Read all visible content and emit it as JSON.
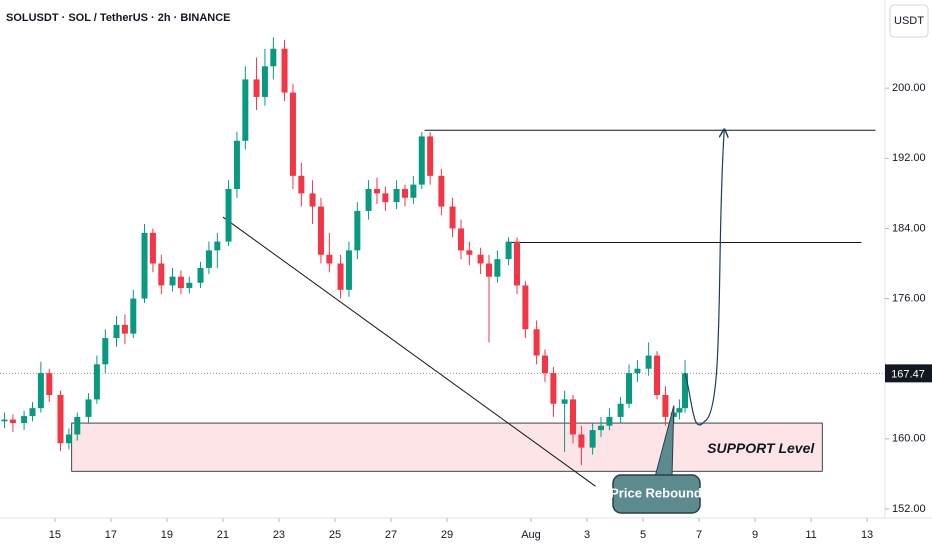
{
  "chart_data": {
    "type": "candlestick",
    "title": "SOLUSDT · SOL / TetherUS · 2h · BINANCE",
    "currency": "USDT",
    "up_color": "#089981",
    "down_color": "#f23645",
    "x": [
      13.2,
      13.5,
      13.9,
      14.2,
      14.5,
      14.8,
      15.2,
      15.5,
      15.8,
      16.2,
      16.5,
      16.8,
      17.2,
      17.5,
      17.8,
      18.2,
      18.5,
      18.8,
      19.2,
      19.5,
      19.8,
      20.2,
      20.5,
      20.8,
      21.2,
      21.5,
      21.8,
      22.2,
      22.5,
      22.8,
      23.2,
      23.5,
      23.8,
      24.2,
      24.5,
      24.8,
      25.2,
      25.5,
      25.8,
      26.2,
      26.5,
      26.8,
      27.2,
      27.5,
      27.8,
      28.1,
      28.4,
      28.8,
      29.2,
      29.5,
      29.8,
      30.2,
      30.5,
      30.8,
      31.2,
      31.5,
      31.8,
      32.2,
      32.5,
      32.8,
      33.2,
      33.5,
      33.8,
      34.2,
      34.5,
      34.8,
      35.2,
      35.5,
      35.8,
      36.2,
      36.5,
      36.8,
      37.1,
      37.3,
      37.5
    ],
    "ohlc": [
      [
        162.0,
        163.0,
        161.2,
        162.2
      ],
      [
        162.2,
        162.8,
        160.8,
        161.8
      ],
      [
        161.8,
        163.2,
        161.0,
        162.6
      ],
      [
        162.6,
        164.2,
        162.0,
        163.5
      ],
      [
        163.5,
        168.8,
        163.0,
        167.5
      ],
      [
        167.5,
        168.0,
        164.2,
        165.0
      ],
      [
        165.0,
        165.5,
        158.6,
        159.5
      ],
      [
        159.5,
        161.2,
        158.8,
        160.5
      ],
      [
        160.5,
        163.0,
        159.8,
        162.5
      ],
      [
        162.5,
        165.2,
        161.8,
        164.5
      ],
      [
        164.5,
        169.5,
        164.0,
        168.5
      ],
      [
        168.5,
        172.5,
        167.5,
        171.5
      ],
      [
        171.5,
        174.0,
        170.5,
        173.0
      ],
      [
        173.0,
        174.2,
        170.8,
        172.0
      ],
      [
        172.0,
        177.0,
        171.5,
        176.0
      ],
      [
        176.0,
        184.5,
        175.5,
        183.5
      ],
      [
        183.5,
        184.0,
        179.0,
        180.0
      ],
      [
        180.0,
        181.0,
        176.5,
        177.5
      ],
      [
        177.5,
        179.5,
        176.8,
        178.5
      ],
      [
        178.5,
        179.2,
        176.5,
        177.2
      ],
      [
        177.2,
        178.5,
        176.6,
        177.8
      ],
      [
        177.8,
        180.2,
        177.2,
        179.5
      ],
      [
        179.5,
        182.5,
        178.8,
        181.5
      ],
      [
        181.5,
        183.5,
        179.5,
        182.5
      ],
      [
        182.5,
        189.5,
        182.0,
        188.5
      ],
      [
        188.5,
        195.0,
        187.5,
        194.0
      ],
      [
        194.0,
        202.5,
        193.0,
        201.0
      ],
      [
        201.0,
        203.5,
        197.5,
        199.0
      ],
      [
        199.0,
        204.5,
        198.0,
        202.5
      ],
      [
        202.5,
        205.8,
        201.0,
        204.5
      ],
      [
        204.5,
        205.5,
        198.5,
        199.5
      ],
      [
        199.5,
        200.5,
        188.5,
        190.0
      ],
      [
        190.0,
        191.5,
        186.5,
        188.0
      ],
      [
        188.0,
        189.5,
        184.5,
        186.5
      ],
      [
        186.5,
        187.5,
        180.0,
        181.0
      ],
      [
        181.0,
        183.5,
        179.0,
        180.0
      ],
      [
        180.0,
        181.0,
        176.0,
        177.0
      ],
      [
        177.0,
        182.5,
        176.2,
        181.5
      ],
      [
        181.5,
        187.0,
        180.5,
        186.0
      ],
      [
        186.0,
        189.5,
        185.0,
        188.5
      ],
      [
        188.5,
        189.8,
        186.8,
        188.0
      ],
      [
        188.0,
        188.8,
        186.0,
        187.0
      ],
      [
        187.0,
        189.5,
        186.2,
        188.5
      ],
      [
        188.5,
        189.0,
        186.5,
        187.5
      ],
      [
        187.5,
        190.0,
        186.8,
        189.0
      ],
      [
        189.0,
        195.0,
        188.5,
        194.5
      ],
      [
        194.5,
        195.0,
        189.0,
        190.0
      ],
      [
        190.0,
        190.8,
        185.5,
        186.5
      ],
      [
        186.5,
        187.5,
        183.0,
        184.0
      ],
      [
        184.0,
        185.0,
        180.5,
        181.5
      ],
      [
        181.5,
        182.5,
        179.8,
        181.0
      ],
      [
        181.0,
        181.8,
        178.8,
        180.0
      ],
      [
        180.0,
        181.0,
        171.0,
        178.5
      ],
      [
        178.5,
        181.5,
        177.8,
        180.5
      ],
      [
        180.5,
        183.0,
        179.8,
        182.5
      ],
      [
        182.5,
        183.0,
        176.5,
        177.5
      ],
      [
        177.5,
        178.0,
        171.5,
        172.5
      ],
      [
        172.5,
        173.5,
        168.5,
        169.5
      ],
      [
        169.5,
        170.2,
        166.5,
        167.5
      ],
      [
        167.5,
        168.2,
        162.5,
        164.0
      ],
      [
        164.0,
        165.5,
        158.5,
        164.5
      ],
      [
        164.5,
        165.0,
        159.5,
        160.5
      ],
      [
        160.5,
        161.5,
        157.0,
        159.0
      ],
      [
        159.0,
        161.8,
        158.2,
        161.0
      ],
      [
        161.0,
        162.5,
        160.2,
        161.5
      ],
      [
        161.5,
        163.5,
        161.0,
        162.5
      ],
      [
        162.5,
        164.8,
        161.8,
        164.0
      ],
      [
        164.0,
        168.5,
        163.5,
        167.5
      ],
      [
        167.5,
        169.0,
        166.5,
        168.0
      ],
      [
        168.0,
        171.0,
        167.2,
        169.5
      ],
      [
        169.5,
        170.0,
        164.5,
        165.0
      ],
      [
        165.0,
        166.0,
        161.5,
        162.5
      ],
      [
        162.5,
        163.8,
        161.8,
        163.0
      ],
      [
        163.0,
        164.5,
        162.2,
        163.5
      ],
      [
        163.5,
        169.0,
        163.0,
        167.47
      ]
    ],
    "xlim": [
      13.04,
      44.64
    ],
    "ylim": [
      150.97,
      210.06
    ],
    "xticks": [
      15,
      17,
      19,
      21,
      23,
      25,
      27,
      29,
      {
        "value": 32,
        "label": "Aug"
      },
      {
        "value": 34,
        "label": "3"
      },
      {
        "value": 36,
        "label": "5"
      },
      {
        "value": 38,
        "label": "7"
      },
      {
        "value": 40,
        "label": "9"
      },
      {
        "value": 42,
        "label": "11"
      },
      {
        "value": 44,
        "label": "13"
      }
    ],
    "yticks": [
      {
        "value": 152,
        "label": "152.00"
      },
      {
        "value": 160,
        "label": "160.00"
      },
      {
        "value": 176,
        "label": "176.00"
      },
      {
        "value": 184,
        "label": "184.00"
      },
      {
        "value": 192,
        "label": "192.00"
      },
      {
        "value": 200,
        "label": "200.00"
      }
    ],
    "support_zone": {
      "label": "SUPPORT Level",
      "low": 156.3,
      "high": 161.8,
      "x": [
        15.6,
        42.4
      ]
    },
    "levels": [
      {
        "value": 195.2,
        "x": [
          28.2,
          44.3
        ]
      },
      {
        "value": 182.4,
        "x": [
          31.3,
          43.8
        ]
      }
    ],
    "trendline": {
      "x": [
        21.0,
        34.3
      ],
      "y": [
        185.3,
        154.6
      ]
    },
    "projection": {
      "x": [
        37.5,
        38.2,
        38.9
      ],
      "y": [
        167.5,
        162.0,
        195.2
      ]
    },
    "callout": {
      "label": "Price Rebound",
      "x": 37.1,
      "y": 163.8
    }
  }
}
